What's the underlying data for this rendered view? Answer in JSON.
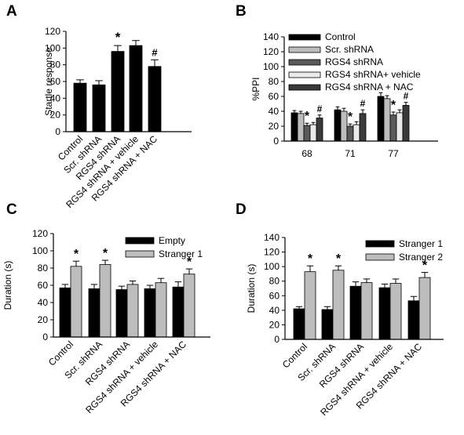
{
  "chart_data": [
    {
      "panel": "A",
      "type": "bar",
      "ylabel": "Startle response",
      "ylim": [
        0,
        120
      ],
      "yticks": [
        0,
        20,
        40,
        60,
        80,
        100,
        120
      ],
      "categories": [
        "Control",
        "Scr. shRNA",
        "RGS4 shRNA",
        "RGS4 shRNA + vehicle",
        "RGS4 shRNA + NAC"
      ],
      "series": [
        {
          "values": [
            58,
            56,
            96,
            103,
            78
          ],
          "errors": [
            4,
            5,
            7,
            6,
            8
          ],
          "color": "#000000"
        }
      ],
      "annotations": [
        "",
        "",
        "*",
        "",
        "#"
      ],
      "legend": null,
      "grid": false
    },
    {
      "panel": "B",
      "type": "bar",
      "ylabel": "%PPI",
      "ylim": [
        0,
        140
      ],
      "yticks": [
        0,
        20,
        40,
        60,
        80,
        100,
        120,
        140
      ],
      "categories": [
        "68",
        "71",
        "77"
      ],
      "series": [
        {
          "name": "Control",
          "values": [
            38,
            42,
            60
          ],
          "errors": [
            3,
            4,
            5
          ],
          "color": "#000000"
        },
        {
          "name": "Scr. shRNA",
          "values": [
            37,
            40,
            57
          ],
          "errors": [
            3,
            4,
            4
          ],
          "color": "#bdbdbd"
        },
        {
          "name": "RGS4 shRNA",
          "values": [
            21,
            20,
            35
          ],
          "errors": [
            3,
            3,
            4
          ],
          "color": "#5a5a5a"
        },
        {
          "name": "RGS4 shRNA+ vehicle",
          "values": [
            22,
            22,
            38
          ],
          "errors": [
            3,
            4,
            4
          ],
          "color": "#ebebeb"
        },
        {
          "name": "RGS4 shRNA + NAC",
          "values": [
            31,
            37,
            48
          ],
          "errors": [
            4,
            5,
            4
          ],
          "color": "#3a3a3a"
        }
      ],
      "annotations": [
        {
          "category": 0,
          "series": 2,
          "mark": "*"
        },
        {
          "category": 0,
          "series": 4,
          "mark": "#"
        },
        {
          "category": 1,
          "series": 2,
          "mark": "*"
        },
        {
          "category": 1,
          "series": 4,
          "mark": "#"
        },
        {
          "category": 2,
          "series": 2,
          "mark": "*"
        },
        {
          "category": 2,
          "series": 4,
          "mark": "#"
        }
      ],
      "legend": "top-left",
      "grid": false
    },
    {
      "panel": "C",
      "type": "bar",
      "ylabel": "Duration (s)",
      "ylim": [
        0,
        120
      ],
      "yticks": [
        0,
        20,
        40,
        60,
        80,
        100,
        120
      ],
      "categories": [
        "Control",
        "Scr. shRNA",
        "RGS4 shRNA",
        "RGS4 shRNA + vehicle",
        "RGS4 shRNA + NAC"
      ],
      "series": [
        {
          "name": "Empty",
          "values": [
            57,
            56,
            55,
            56,
            58
          ],
          "errors": [
            4,
            5,
            4,
            4,
            6
          ],
          "color": "#000000"
        },
        {
          "name": "Stranger 1",
          "values": [
            82,
            84,
            61,
            63,
            73
          ],
          "errors": [
            6,
            5,
            4,
            5,
            6
          ],
          "color": "#bdbdbd"
        }
      ],
      "annotations": [
        {
          "category": 0,
          "series": 1,
          "mark": "*"
        },
        {
          "category": 1,
          "series": 1,
          "mark": "*"
        },
        {
          "category": 4,
          "series": 1,
          "mark": "*"
        }
      ],
      "legend": "top-right",
      "grid": false
    },
    {
      "panel": "D",
      "type": "bar",
      "ylabel": "Duration (s)",
      "ylim": [
        0,
        140
      ],
      "yticks": [
        0,
        20,
        40,
        60,
        80,
        100,
        120,
        140
      ],
      "categories": [
        "Control",
        "Scr. shRNA",
        "RGS4 shRNA",
        "RGS4 shRNA + vehicle",
        "RGS4 shRNA + NAC"
      ],
      "series": [
        {
          "name": "Stranger 1",
          "values": [
            42,
            41,
            73,
            71,
            53
          ],
          "errors": [
            3,
            4,
            6,
            5,
            6
          ],
          "color": "#000000"
        },
        {
          "name": "Stranger 2",
          "values": [
            93,
            95,
            78,
            77,
            85
          ],
          "errors": [
            8,
            6,
            5,
            6,
            7
          ],
          "color": "#bdbdbd"
        }
      ],
      "annotations": [
        {
          "category": 0,
          "series": 1,
          "mark": "*"
        },
        {
          "category": 1,
          "series": 1,
          "mark": "*"
        },
        {
          "category": 4,
          "series": 1,
          "mark": "*"
        }
      ],
      "legend": "top-right",
      "grid": false
    }
  ]
}
